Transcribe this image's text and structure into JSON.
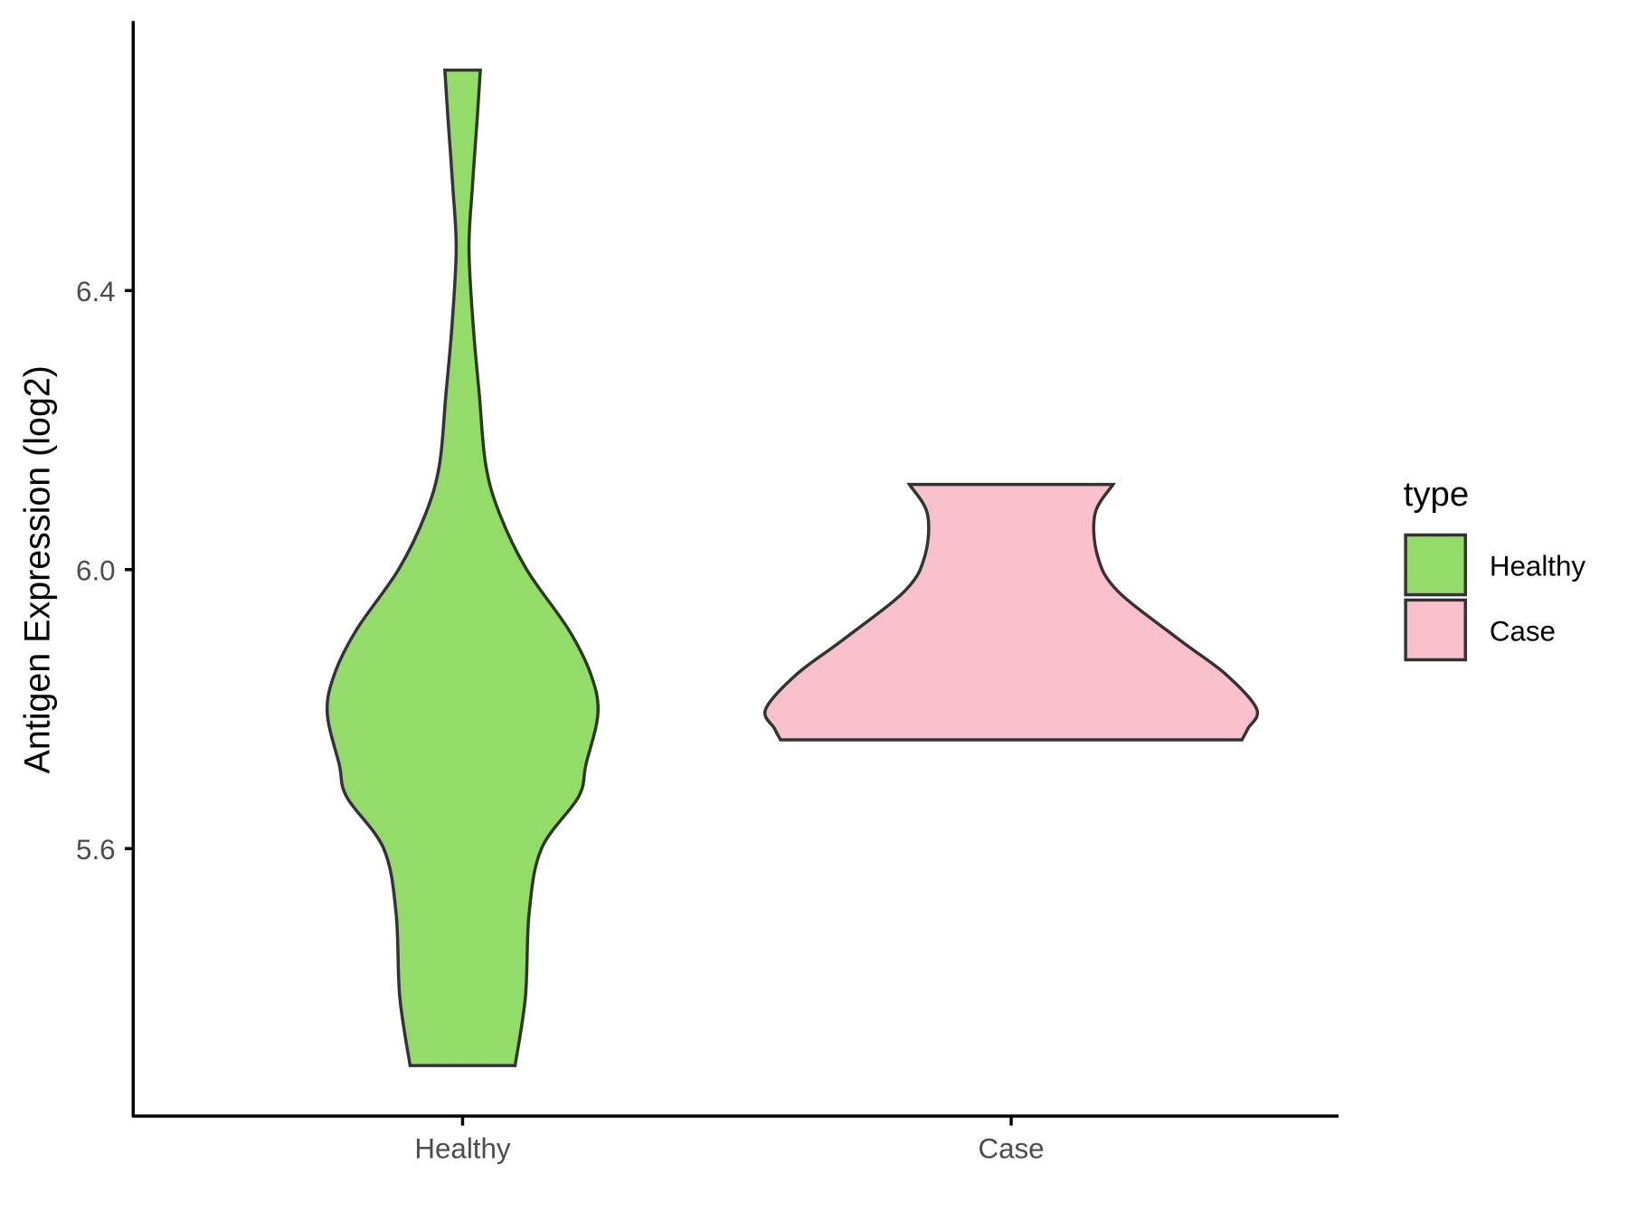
{
  "chart_data": {
    "type": "violin",
    "title": "",
    "xlabel": "",
    "ylabel": "Antigen Expression (log2)",
    "categories": [
      "Healthy",
      "Case"
    ],
    "ylim": [
      5.22,
      6.79
    ],
    "yticks": [
      5.6,
      6.0,
      6.4
    ],
    "ytick_labels": [
      "5.6",
      "6.0",
      "6.4"
    ],
    "grid": false,
    "legend": {
      "title": "type",
      "position": "right",
      "entries": [
        "Healthy",
        "Case"
      ]
    },
    "colors": {
      "Healthy": "#93dc6a",
      "Case": "#f7c0ca"
    },
    "series": [
      {
        "name": "Healthy",
        "min": 5.289,
        "max": 6.716,
        "profile": [
          [
            6.716,
            0.072
          ],
          [
            6.65,
            0.06
          ],
          [
            6.55,
            0.04
          ],
          [
            6.46,
            0.026
          ],
          [
            6.35,
            0.043
          ],
          [
            6.25,
            0.068
          ],
          [
            6.15,
            0.094
          ],
          [
            6.08,
            0.15
          ],
          [
            6.0,
            0.26
          ],
          [
            5.914,
            0.43
          ],
          [
            5.85,
            0.52
          ],
          [
            5.794,
            0.549
          ],
          [
            5.72,
            0.5
          ],
          [
            5.674,
            0.47
          ],
          [
            5.6,
            0.32
          ],
          [
            5.508,
            0.27
          ],
          [
            5.388,
            0.255
          ],
          [
            5.289,
            0.213
          ]
        ]
      },
      {
        "name": "Case",
        "min": 5.756,
        "max": 6.122,
        "profile": [
          [
            6.122,
            0.413
          ],
          [
            6.08,
            0.34
          ],
          [
            6.02,
            0.35
          ],
          [
            5.97,
            0.43
          ],
          [
            5.9,
            0.68
          ],
          [
            5.85,
            0.87
          ],
          [
            5.8,
            0.996
          ],
          [
            5.772,
            0.96
          ],
          [
            5.756,
            0.936
          ]
        ]
      }
    ]
  }
}
